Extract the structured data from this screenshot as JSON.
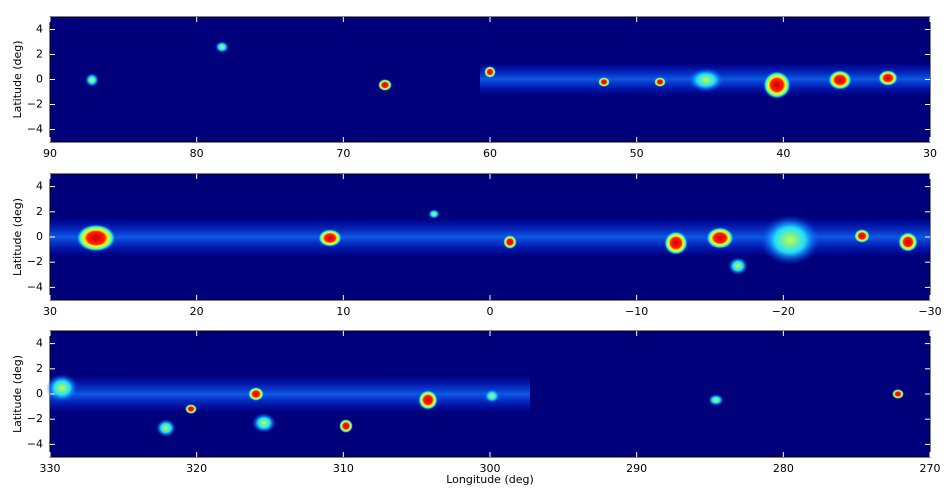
{
  "chart_data": [
    {
      "type": "image",
      "ylabel": "Latitude (deg)",
      "xlim": [
        90,
        30
      ],
      "ylim": [
        -5,
        5
      ],
      "xticks": [
        90,
        80,
        70,
        60,
        50,
        40,
        30
      ],
      "yticks": [
        {
          "value": -4,
          "label": "−4"
        },
        {
          "value": -2,
          "label": "−2"
        },
        0,
        2,
        4
      ]
    },
    {
      "type": "image",
      "ylabel": "Latitude (deg)",
      "xlim": [
        30,
        -30
      ],
      "ylim": [
        -5,
        5
      ],
      "xticks": [
        30,
        20,
        10,
        0,
        {
          "value": -10,
          "label": "−10"
        },
        {
          "value": -20,
          "label": "−20"
        },
        {
          "value": -30,
          "label": "−30"
        }
      ],
      "yticks": [
        {
          "value": -4,
          "label": "−4"
        },
        {
          "value": -2,
          "label": "−2"
        },
        0,
        2,
        4
      ]
    },
    {
      "type": "image",
      "ylabel": "Latitude (deg)",
      "xlabel": "Longitude (deg)",
      "xlim": [
        330,
        270
      ],
      "ylim": [
        -5,
        5
      ],
      "xticks": [
        330,
        320,
        310,
        300,
        290,
        280,
        270
      ],
      "yticks": [
        {
          "value": -4,
          "label": "−4"
        },
        {
          "value": -2,
          "label": "−2"
        },
        0,
        2,
        4
      ]
    }
  ]
}
